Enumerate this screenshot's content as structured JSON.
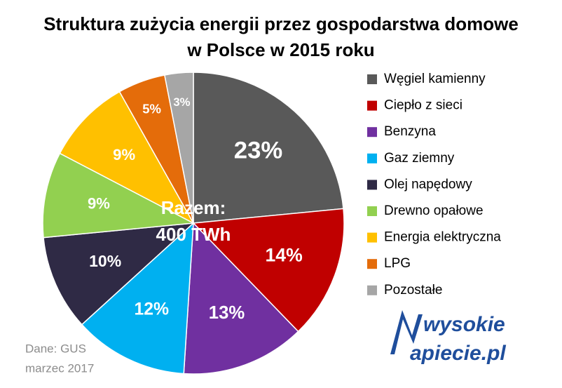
{
  "chart_data": {
    "type": "pie",
    "title": [
      "Struktura zużycia energii przez gospodarstwa domowe",
      "w Polsce w 2015 roku"
    ],
    "categories": [
      "Węgiel kamienny",
      "Ciepło z sieci",
      "Benzyna",
      "Gaz ziemny",
      "Olej napędowy",
      "Drewno opałowe",
      "Energia elektryczna",
      "LPG",
      "Pozostałe"
    ],
    "values": [
      23,
      14,
      13,
      12,
      10,
      9,
      9,
      5,
      3
    ],
    "value_labels": [
      "23%",
      "14%",
      "13%",
      "12%",
      "10%",
      "9%",
      "9%",
      "5%",
      "3%"
    ],
    "colors": [
      "#595959",
      "#c00000",
      "#7030a0",
      "#00b0f0",
      "#2f2a45",
      "#92d050",
      "#ffc000",
      "#e46c0a",
      "#a6a6a6"
    ],
    "center_label": [
      "Razem:",
      "400 TWh"
    ],
    "source": [
      "Dane: GUS",
      "marzec 2017"
    ],
    "logo": [
      "wysokie",
      "apiecie.pl"
    ],
    "legend": "right"
  }
}
